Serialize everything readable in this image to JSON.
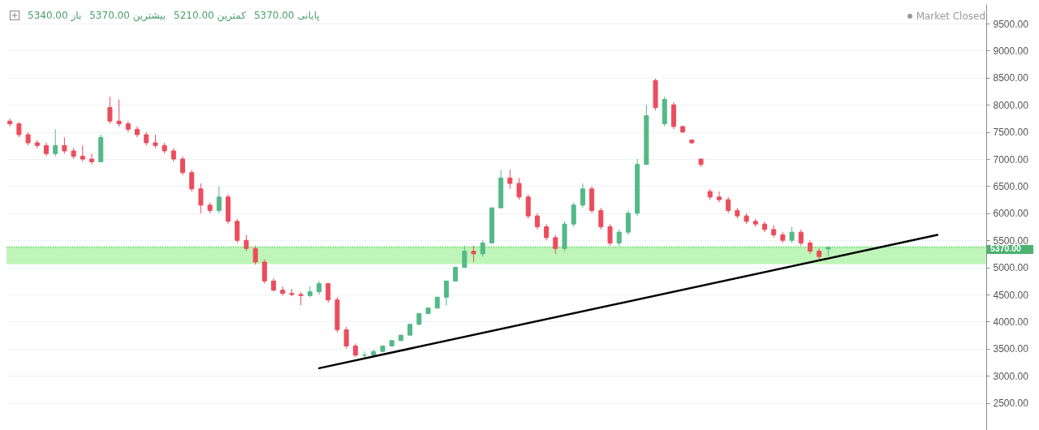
{
  "chart_data": {
    "type": "candlestick",
    "categories": [
      null,
      null,
      null,
      null,
      null,
      null,
      null,
      null,
      null,
      null,
      null,
      null,
      null,
      null,
      null,
      null,
      null,
      null,
      null,
      null,
      null,
      null,
      null,
      null,
      null,
      null,
      null,
      null,
      null,
      null,
      null,
      null,
      null,
      null,
      null,
      null,
      null,
      null,
      null,
      null,
      null,
      null,
      null,
      null,
      null,
      null,
      null,
      null,
      null,
      null,
      null,
      null,
      null,
      null,
      null,
      null,
      null,
      null,
      null,
      null,
      null,
      null,
      null,
      null,
      null,
      null,
      null,
      null,
      null,
      null,
      null,
      null,
      null,
      null,
      null,
      null,
      null,
      null,
      null,
      null,
      null,
      null,
      null,
      null,
      null,
      null,
      null,
      null,
      null,
      null,
      null,
      null,
      null,
      null,
      null,
      null,
      null,
      null,
      null,
      null,
      null,
      null,
      null,
      null,
      null,
      null,
      null,
      null
    ],
    "ohlc": [
      [
        7700,
        7750,
        7600,
        7650
      ],
      [
        7650,
        7680,
        7400,
        7450
      ],
      [
        7450,
        7500,
        7250,
        7300
      ],
      [
        7300,
        7350,
        7200,
        7250
      ],
      [
        7250,
        7300,
        7050,
        7100
      ],
      [
        7100,
        7550,
        7050,
        7250
      ],
      [
        7250,
        7400,
        7100,
        7150
      ],
      [
        7150,
        7200,
        7000,
        7050
      ],
      [
        7050,
        7250,
        6950,
        7000
      ],
      [
        7000,
        7100,
        6900,
        6950
      ],
      [
        6950,
        7450,
        6950,
        7400
      ],
      [
        7950,
        8150,
        7650,
        7700
      ],
      [
        7700,
        8100,
        7600,
        7650
      ],
      [
        7650,
        7700,
        7500,
        7550
      ],
      [
        7550,
        7600,
        7400,
        7450
      ],
      [
        7450,
        7500,
        7250,
        7300
      ],
      [
        7300,
        7450,
        7200,
        7250
      ],
      [
        7250,
        7300,
        7100,
        7150
      ],
      [
        7150,
        7200,
        6950,
        7000
      ],
      [
        7000,
        7050,
        6700,
        6750
      ],
      [
        6750,
        6800,
        6400,
        6450
      ],
      [
        6450,
        6550,
        6000,
        6150
      ],
      [
        6150,
        6200,
        6000,
        6050
      ],
      [
        6050,
        6500,
        6000,
        6300
      ],
      [
        6300,
        6350,
        5800,
        5850
      ],
      [
        5850,
        5900,
        5450,
        5500
      ],
      [
        5500,
        5600,
        5300,
        5350
      ],
      [
        5350,
        5400,
        5050,
        5100
      ],
      [
        5100,
        5150,
        4700,
        4750
      ],
      [
        4750,
        4800,
        4550,
        4580
      ],
      [
        4580,
        4650,
        4480,
        4520
      ],
      [
        4520,
        4600,
        4470,
        4500
      ],
      [
        4500,
        4550,
        4300,
        4480
      ],
      [
        4480,
        4650,
        4450,
        4550
      ],
      [
        4550,
        4750,
        4500,
        4700
      ],
      [
        4700,
        4720,
        4350,
        4400
      ],
      [
        4400,
        4450,
        3800,
        3850
      ],
      [
        3850,
        3900,
        3500,
        3550
      ],
      [
        3550,
        3600,
        3350,
        3380
      ],
      [
        3380,
        3450,
        3320,
        3380
      ],
      [
        3380,
        3480,
        3350,
        3450
      ],
      [
        3450,
        3560,
        3440,
        3550
      ],
      [
        3550,
        3660,
        3540,
        3650
      ],
      [
        3650,
        3760,
        3640,
        3750
      ],
      [
        3750,
        3960,
        3740,
        3950
      ],
      [
        3950,
        4160,
        3940,
        4150
      ],
      [
        4150,
        4260,
        4140,
        4250
      ],
      [
        4250,
        4460,
        4240,
        4450
      ],
      [
        4450,
        4760,
        4300,
        4750
      ],
      [
        4750,
        5010,
        4740,
        5000
      ],
      [
        5000,
        5400,
        5000,
        5300
      ],
      [
        5300,
        5400,
        5100,
        5250
      ],
      [
        5250,
        5500,
        5200,
        5450
      ],
      [
        5450,
        6100,
        5450,
        6100
      ],
      [
        6100,
        6800,
        6100,
        6650
      ],
      [
        6650,
        6800,
        6450,
        6550
      ],
      [
        6550,
        6650,
        6250,
        6300
      ],
      [
        6300,
        6350,
        5900,
        5950
      ],
      [
        5950,
        6000,
        5700,
        5750
      ],
      [
        5750,
        5800,
        5500,
        5550
      ],
      [
        5550,
        5600,
        5250,
        5350
      ],
      [
        5350,
        5850,
        5300,
        5800
      ],
      [
        5800,
        6200,
        5750,
        6150
      ],
      [
        6150,
        6550,
        6100,
        6450
      ],
      [
        6450,
        6500,
        6000,
        6050
      ],
      [
        6050,
        6100,
        5700,
        5750
      ],
      [
        5750,
        5800,
        5400,
        5450
      ],
      [
        5450,
        5700,
        5400,
        5650
      ],
      [
        5650,
        6050,
        5600,
        6000
      ],
      [
        6000,
        7000,
        5950,
        6900
      ],
      [
        6900,
        8000,
        6900,
        7800
      ],
      [
        8450,
        8480,
        7900,
        7950
      ],
      [
        7650,
        8150,
        7600,
        8100
      ],
      [
        8000,
        8050,
        7550,
        7600
      ],
      [
        7600,
        7620,
        7480,
        7500
      ],
      [
        7350,
        7360,
        7280,
        7300
      ],
      [
        7000,
        7000,
        6850,
        6900
      ],
      [
        6400,
        6450,
        6250,
        6300
      ],
      [
        6300,
        6400,
        6200,
        6250
      ],
      [
        6250,
        6300,
        6000,
        6050
      ],
      [
        6050,
        6100,
        5900,
        5950
      ],
      [
        5950,
        6000,
        5800,
        5850
      ],
      [
        5850,
        5900,
        5750,
        5800
      ],
      [
        5800,
        5850,
        5650,
        5700
      ],
      [
        5700,
        5780,
        5550,
        5600
      ],
      [
        5600,
        5650,
        5450,
        5500
      ],
      [
        5500,
        5750,
        5450,
        5650
      ],
      [
        5650,
        5700,
        5400,
        5450
      ],
      [
        5450,
        5500,
        5250,
        5300
      ],
      [
        5300,
        5350,
        5150,
        5200
      ],
      [
        5340,
        5370,
        5210,
        5370
      ],
      null,
      null,
      null,
      null,
      null,
      null,
      null,
      null,
      null,
      null,
      null,
      null,
      null,
      null,
      null,
      null,
      null
    ],
    "series": [
      {
        "type": "line",
        "color": "#000000",
        "values": [
          null,
          null,
          null,
          null,
          null,
          null,
          null,
          null,
          null,
          null,
          null,
          null,
          null,
          null,
          null,
          null,
          null,
          null,
          null,
          null,
          null,
          null,
          null,
          null,
          null,
          null,
          null,
          null,
          null,
          null,
          null,
          null,
          null,
          null,
          3140,
          null,
          null,
          null,
          null,
          null,
          null,
          null,
          null,
          null,
          null,
          null,
          null,
          null,
          null,
          null,
          null,
          null,
          null,
          null,
          null,
          null,
          null,
          null,
          null,
          null,
          null,
          null,
          null,
          null,
          null,
          null,
          null,
          null,
          null,
          null,
          null,
          null,
          null,
          null,
          null,
          null,
          null,
          null,
          null,
          null,
          null,
          null,
          null,
          null,
          null,
          null,
          null,
          null,
          null,
          null,
          null,
          null,
          null,
          null,
          null,
          null,
          null,
          null,
          null,
          null,
          null,
          null,
          5600,
          null,
          null,
          null,
          null,
          null
        ]
      }
    ],
    "ylim": [
      2000,
      9860
    ],
    "yticks": [
      {
        "value": 2500,
        "label": "2500.00"
      },
      {
        "value": 3000,
        "label": "3000.00"
      },
      {
        "value": 3500,
        "label": "3500.00"
      },
      {
        "value": 4000,
        "label": "4000.00"
      },
      {
        "value": 4500,
        "label": "4500.00"
      },
      {
        "value": 5000,
        "label": "5000.00"
      },
      {
        "value": 5500,
        "label": "5500.00"
      },
      {
        "value": 6000,
        "label": "6000.00"
      },
      {
        "value": 6500,
        "label": "6500.00"
      },
      {
        "value": 7000,
        "label": "7000.00"
      },
      {
        "value": 7500,
        "label": "7500.00"
      },
      {
        "value": 8000,
        "label": "8000.00"
      },
      {
        "value": 8500,
        "label": "8500.00"
      },
      {
        "value": 9000,
        "label": "9000.00"
      },
      {
        "value": 9500,
        "label": "9500.00"
      }
    ],
    "tick_labels": "y",
    "grid": "y",
    "ref_lines": [
      {
        "axis": "y",
        "value": 5370,
        "label": "5370.00",
        "color": "#4bb36f",
        "line_style": "dotted"
      }
    ],
    "bands": [
      {
        "axis": "y",
        "from": 5060,
        "to": 5390,
        "color": "#bff5b8"
      }
    ],
    "annotations": [
      "باز 5340.00",
      "بیشترین 5370.00",
      "کمترین 5210.00",
      "پایانی 5370.00",
      "Market Closed"
    ]
  }
}
